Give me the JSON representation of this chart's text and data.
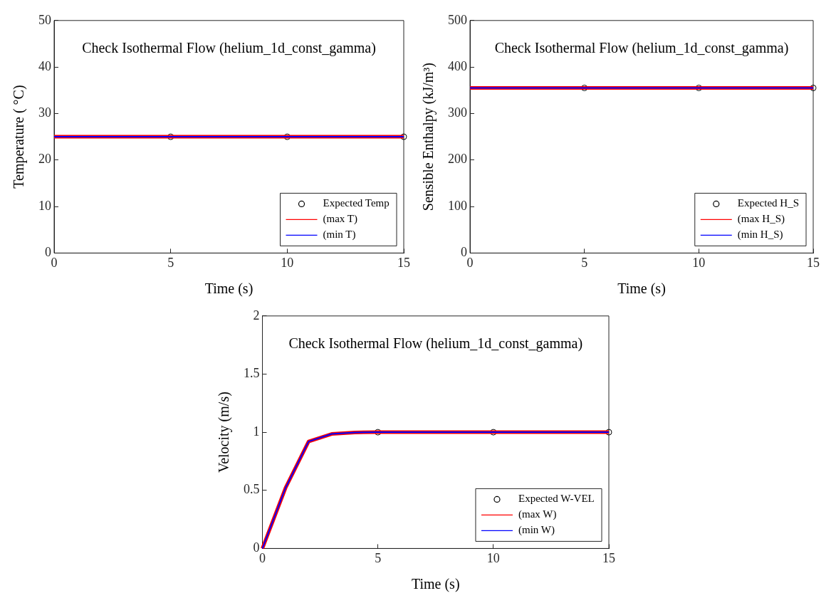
{
  "chart_data": [
    {
      "type": "line",
      "title": "Check Isothermal Flow (helium_1d_const_gamma)",
      "xlabel": "Time (s)",
      "ylabel": "Temperature ( °C)",
      "xlim": [
        0,
        15
      ],
      "xticks": [
        0,
        5,
        10,
        15
      ],
      "ylim": [
        0,
        50
      ],
      "yticks": [
        0,
        10,
        20,
        30,
        40,
        50
      ],
      "legend": "bottom right",
      "series": [
        {
          "name": "Expected Temp",
          "type": "scatter",
          "marker": "circle",
          "color": "#000000",
          "x": [
            5,
            10,
            15
          ],
          "values": [
            25,
            25,
            25
          ]
        },
        {
          "name": "(max T)",
          "color": "#ff0000",
          "x": [
            0,
            15
          ],
          "values": [
            25,
            25
          ]
        },
        {
          "name": "(min T)",
          "color": "#0000ff",
          "x": [
            0,
            15
          ],
          "values": [
            25,
            25
          ]
        }
      ]
    },
    {
      "type": "line",
      "title": "Check Isothermal Flow (helium_1d_const_gamma)",
      "xlabel": "Time (s)",
      "ylabel": "Sensible Enthalpy (kJ/m³)",
      "xlim": [
        0,
        15
      ],
      "xticks": [
        0,
        5,
        10,
        15
      ],
      "ylim": [
        0,
        500
      ],
      "yticks": [
        0,
        100,
        200,
        300,
        400,
        500
      ],
      "legend": "bottom right",
      "series": [
        {
          "name": "Expected H_S",
          "type": "scatter",
          "marker": "circle",
          "color": "#000000",
          "x": [
            5,
            10,
            15
          ],
          "values": [
            355,
            355,
            355
          ]
        },
        {
          "name": "(max H_S)",
          "color": "#ff0000",
          "x": [
            0,
            15
          ],
          "values": [
            355,
            355
          ]
        },
        {
          "name": "(min H_S)",
          "color": "#0000ff",
          "x": [
            0,
            15
          ],
          "values": [
            355,
            355
          ]
        }
      ]
    },
    {
      "type": "line",
      "title": "Check Isothermal Flow (helium_1d_const_gamma)",
      "xlabel": "Time (s)",
      "ylabel": "Velocity (m/s)",
      "xlim": [
        0,
        15
      ],
      "xticks": [
        0,
        5,
        10,
        15
      ],
      "ylim": [
        0,
        2
      ],
      "yticks": [
        0,
        0.5,
        1,
        1.5,
        2
      ],
      "legend": "bottom right",
      "series": [
        {
          "name": "Expected W-VEL",
          "type": "scatter",
          "marker": "circle",
          "color": "#000000",
          "x": [
            5,
            10,
            15
          ],
          "values": [
            1,
            1,
            1
          ]
        },
        {
          "name": "(max W)",
          "color": "#ff0000",
          "x": [
            0,
            1,
            2,
            3,
            4,
            5,
            10,
            15
          ],
          "values": [
            0,
            0.52,
            0.92,
            0.985,
            0.998,
            1,
            1,
            1
          ]
        },
        {
          "name": "(min W)",
          "color": "#0000ff",
          "x": [
            0,
            1,
            2,
            3,
            4,
            5,
            10,
            15
          ],
          "values": [
            0,
            0.52,
            0.92,
            0.985,
            0.998,
            1,
            1,
            1
          ]
        }
      ]
    }
  ]
}
